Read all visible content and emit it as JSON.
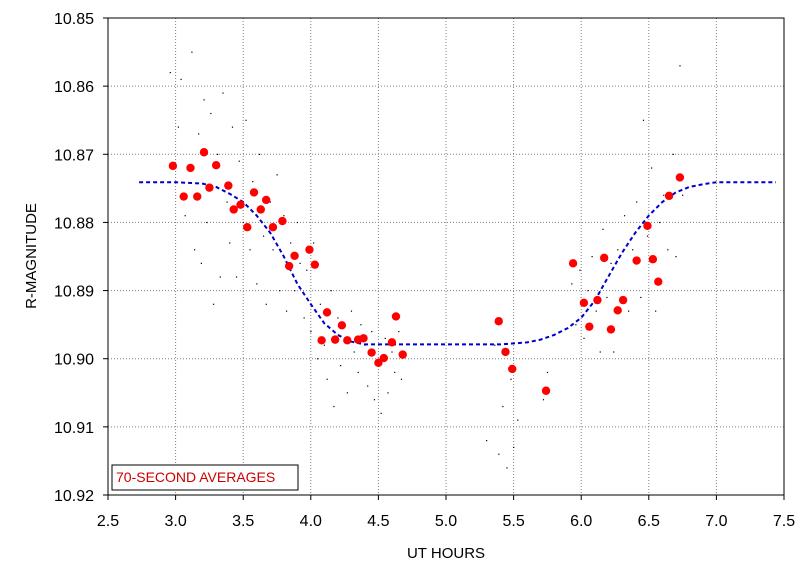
{
  "chart_data": {
    "type": "scatter",
    "title": "",
    "xlabel": "UT HOURS",
    "ylabel": "R-MAGNITUDE",
    "xlim": [
      2.5,
      7.5
    ],
    "ylim": [
      10.85,
      10.92
    ],
    "y_inverted": true,
    "xticks": [
      "2.5",
      "3.0",
      "3.5",
      "4.0",
      "4.5",
      "5.0",
      "5.5",
      "6.0",
      "6.5",
      "7.0",
      "7.5"
    ],
    "yticks": [
      "10.85",
      "10.86",
      "10.87",
      "10.88",
      "10.89",
      "10.90",
      "10.91",
      "10.92"
    ],
    "grid": true,
    "legend": {
      "label": "70-SECOND AVERAGES",
      "placement": "bottom-left"
    },
    "colors": {
      "averages": "#ff0000",
      "model": "#0000cc",
      "raw": "#000000",
      "legend_text": "#cc0000"
    },
    "series": [
      {
        "points": [
          [
            2.98,
            10.8717
          ],
          [
            3.06,
            10.8762
          ],
          [
            3.11,
            10.872
          ],
          [
            3.16,
            10.8762
          ],
          [
            3.21,
            10.8697
          ],
          [
            3.25,
            10.8749
          ],
          [
            3.3,
            10.8716
          ],
          [
            3.39,
            10.8746
          ],
          [
            3.43,
            10.8781
          ],
          [
            3.48,
            10.8774
          ],
          [
            3.53,
            10.8807
          ],
          [
            3.58,
            10.8756
          ],
          [
            3.63,
            10.8781
          ],
          [
            3.67,
            10.8767
          ],
          [
            3.72,
            10.8807
          ],
          [
            3.79,
            10.8798
          ],
          [
            3.84,
            10.8864
          ],
          [
            3.88,
            10.8849
          ],
          [
            3.99,
            10.884
          ],
          [
            4.03,
            10.8862
          ],
          [
            4.08,
            10.8973
          ],
          [
            4.12,
            10.8932
          ],
          [
            4.18,
            10.8972
          ],
          [
            4.23,
            10.8951
          ],
          [
            4.27,
            10.8973
          ],
          [
            4.35,
            10.8972
          ],
          [
            4.39,
            10.897
          ],
          [
            4.45,
            10.8991
          ],
          [
            4.5,
            10.9006
          ],
          [
            4.54,
            10.8999
          ],
          [
            4.6,
            10.8976
          ],
          [
            4.63,
            10.8938
          ],
          [
            4.68,
            10.8994
          ],
          [
            5.39,
            10.8945
          ],
          [
            5.44,
            10.899
          ],
          [
            5.49,
            10.9015
          ],
          [
            5.74,
            10.9047
          ],
          [
            5.94,
            10.886
          ],
          [
            6.02,
            10.8918
          ],
          [
            6.06,
            10.8953
          ],
          [
            6.12,
            10.8914
          ],
          [
            6.17,
            10.8852
          ],
          [
            6.22,
            10.8957
          ],
          [
            6.27,
            10.8929
          ],
          [
            6.31,
            10.8914
          ],
          [
            6.41,
            10.8856
          ],
          [
            6.49,
            10.8805
          ],
          [
            6.53,
            10.8854
          ],
          [
            6.57,
            10.8887
          ],
          [
            6.65,
            10.8761
          ],
          [
            6.73,
            10.8734
          ]
        ]
      },
      {
        "style": "dashed",
        "points": [
          [
            2.73,
            10.8741
          ],
          [
            3.0,
            10.8741
          ],
          [
            3.2,
            10.8743
          ],
          [
            3.3,
            10.8748
          ],
          [
            3.4,
            10.8758
          ],
          [
            3.5,
            10.877
          ],
          [
            3.6,
            10.879
          ],
          [
            3.7,
            10.8815
          ],
          [
            3.8,
            10.885
          ],
          [
            3.9,
            10.889
          ],
          [
            4.0,
            10.892
          ],
          [
            4.1,
            10.8948
          ],
          [
            4.2,
            10.8965
          ],
          [
            4.3,
            10.8975
          ],
          [
            4.4,
            10.8979
          ],
          [
            4.5,
            10.8979
          ],
          [
            5.0,
            10.8979
          ],
          [
            5.4,
            10.8979
          ],
          [
            5.6,
            10.8976
          ],
          [
            5.7,
            10.8972
          ],
          [
            5.8,
            10.8965
          ],
          [
            5.9,
            10.8955
          ],
          [
            6.0,
            10.894
          ],
          [
            6.1,
            10.8915
          ],
          [
            6.2,
            10.888
          ],
          [
            6.3,
            10.8845
          ],
          [
            6.4,
            10.8815
          ],
          [
            6.5,
            10.879
          ],
          [
            6.6,
            10.877
          ],
          [
            6.7,
            10.8756
          ],
          [
            6.8,
            10.8748
          ],
          [
            6.9,
            10.8744
          ],
          [
            7.0,
            10.8741
          ],
          [
            7.44,
            10.8741
          ]
        ]
      },
      {
        "points": [
          [
            2.96,
            10.858
          ],
          [
            3.02,
            10.866
          ],
          [
            3.04,
            10.859
          ],
          [
            3.07,
            10.879
          ],
          [
            3.09,
            10.872
          ],
          [
            3.12,
            10.855
          ],
          [
            3.14,
            10.884
          ],
          [
            3.17,
            10.867
          ],
          [
            3.19,
            10.886
          ],
          [
            3.21,
            10.862
          ],
          [
            3.23,
            10.88
          ],
          [
            3.26,
            10.864
          ],
          [
            3.28,
            10.892
          ],
          [
            3.31,
            10.87
          ],
          [
            3.33,
            10.888
          ],
          [
            3.35,
            10.861
          ],
          [
            3.38,
            10.877
          ],
          [
            3.4,
            10.883
          ],
          [
            3.42,
            10.866
          ],
          [
            3.45,
            10.888
          ],
          [
            3.47,
            10.871
          ],
          [
            3.5,
            10.88
          ],
          [
            3.52,
            10.865
          ],
          [
            3.55,
            10.884
          ],
          [
            3.57,
            10.874
          ],
          [
            3.6,
            10.889
          ],
          [
            3.62,
            10.87
          ],
          [
            3.65,
            10.882
          ],
          [
            3.67,
            10.892
          ],
          [
            3.7,
            10.877
          ],
          [
            3.72,
            10.884
          ],
          [
            3.75,
            10.873
          ],
          [
            3.77,
            10.89
          ],
          [
            3.8,
            10.879
          ],
          [
            3.82,
            10.893
          ],
          [
            3.85,
            10.883
          ],
          [
            3.88,
            10.89
          ],
          [
            3.9,
            10.88
          ],
          [
            3.92,
            10.886
          ],
          [
            3.95,
            10.894
          ],
          [
            3.97,
            10.887
          ],
          [
            4.0,
            10.896
          ],
          [
            4.02,
            10.883
          ],
          [
            4.05,
            10.9
          ],
          [
            4.07,
            10.892
          ],
          [
            4.1,
            10.898
          ],
          [
            4.12,
            10.903
          ],
          [
            4.15,
            10.89
          ],
          [
            4.17,
            10.907
          ],
          [
            4.2,
            10.894
          ],
          [
            4.22,
            10.901
          ],
          [
            4.25,
            10.897
          ],
          [
            4.27,
            10.905
          ],
          [
            4.3,
            10.893
          ],
          [
            4.32,
            10.899
          ],
          [
            4.35,
            10.902
          ],
          [
            4.37,
            10.895
          ],
          [
            4.4,
            10.898
          ],
          [
            4.42,
            10.904
          ],
          [
            4.45,
            10.896
          ],
          [
            4.47,
            10.906
          ],
          [
            4.5,
            10.901
          ],
          [
            4.52,
            10.908
          ],
          [
            4.55,
            10.897
          ],
          [
            4.57,
            10.905
          ],
          [
            4.6,
            10.899
          ],
          [
            4.62,
            10.902
          ],
          [
            4.65,
            10.896
          ],
          [
            4.67,
            10.903
          ],
          [
            5.3,
            10.912
          ],
          [
            5.36,
            10.898
          ],
          [
            5.39,
            10.914
          ],
          [
            5.42,
            10.907
          ],
          [
            5.45,
            10.916
          ],
          [
            5.48,
            10.903
          ],
          [
            5.5,
            10.913
          ],
          [
            5.53,
            10.909
          ],
          [
            5.72,
            10.906
          ],
          [
            5.75,
            10.902
          ],
          [
            5.93,
            10.889
          ],
          [
            5.96,
            10.895
          ],
          [
            5.99,
            10.887
          ],
          [
            6.02,
            10.897
          ],
          [
            6.05,
            10.89
          ],
          [
            6.08,
            10.885
          ],
          [
            6.11,
            10.893
          ],
          [
            6.14,
            10.899
          ],
          [
            6.16,
            10.881
          ],
          [
            6.19,
            10.891
          ],
          [
            6.22,
            10.886
          ],
          [
            6.24,
            10.899
          ],
          [
            6.27,
            10.884
          ],
          [
            6.29,
            10.891
          ],
          [
            6.32,
            10.879
          ],
          [
            6.35,
            10.893
          ],
          [
            6.38,
            10.884
          ],
          [
            6.41,
            10.877
          ],
          [
            6.44,
            10.891
          ],
          [
            6.46,
            10.865
          ],
          [
            6.49,
            10.882
          ],
          [
            6.52,
            10.872
          ],
          [
            6.55,
            10.893
          ],
          [
            6.58,
            10.88
          ],
          [
            6.61,
            10.876
          ],
          [
            6.64,
            10.884
          ],
          [
            6.68,
            10.87
          ],
          [
            6.7,
            10.885
          ],
          [
            6.73,
            10.857
          ],
          [
            6.75,
            10.876
          ]
        ]
      }
    ]
  }
}
